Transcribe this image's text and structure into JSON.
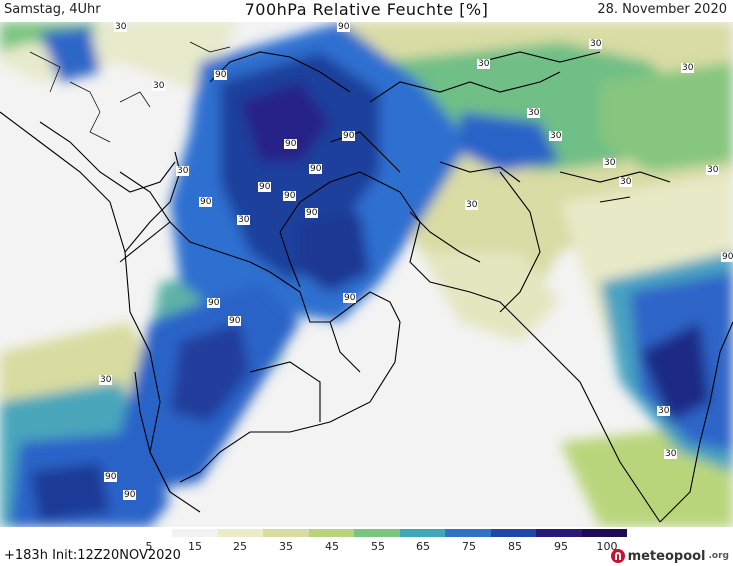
{
  "header": {
    "left": "Samstag, 4Uhr",
    "title": "700hPa Relative Feuchte [%]",
    "right": "28. November 2020"
  },
  "footer": {
    "forecast": "+183h  Init:12Z20NOV2020",
    "logo_text": "meteopool",
    "logo_tld": ".org"
  },
  "legend": {
    "ticks": [
      "5",
      "15",
      "25",
      "35",
      "45",
      "55",
      "65",
      "75",
      "85",
      "95",
      "100"
    ],
    "colors": [
      "#ffffff",
      "#f2f2f2",
      "#ebecc8",
      "#d8dca0",
      "#b8d37a",
      "#7cc481",
      "#3fa8b8",
      "#2f73c9",
      "#2146a8",
      "#2a1a78",
      "#1f0a55"
    ]
  },
  "contour_labels": [
    {
      "text": "90"
    },
    {
      "text": "90"
    },
    {
      "text": "90"
    },
    {
      "text": "90"
    },
    {
      "text": "90"
    },
    {
      "text": "90"
    },
    {
      "text": "90"
    },
    {
      "text": "90"
    },
    {
      "text": "90"
    },
    {
      "text": "90"
    },
    {
      "text": "90"
    },
    {
      "text": "90"
    },
    {
      "text": "90"
    },
    {
      "text": "90"
    },
    {
      "text": "90"
    },
    {
      "text": "30"
    },
    {
      "text": "30"
    },
    {
      "text": "30"
    },
    {
      "text": "30"
    },
    {
      "text": "30"
    },
    {
      "text": "30"
    },
    {
      "text": "30"
    },
    {
      "text": "30"
    },
    {
      "text": "30"
    },
    {
      "text": "30"
    },
    {
      "text": "30"
    },
    {
      "text": "30"
    },
    {
      "text": "30"
    },
    {
      "text": "30"
    },
    {
      "text": "30"
    },
    {
      "text": "30"
    }
  ]
}
